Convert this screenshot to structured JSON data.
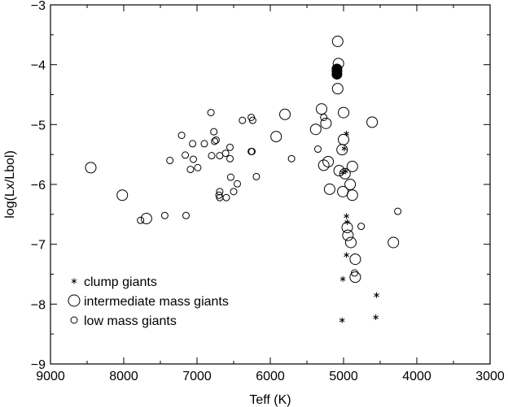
{
  "chart_data": {
    "type": "scatter",
    "xlabel": "Teff (K)",
    "ylabel": "log(Lx/Lbol)",
    "xlim": [
      9000,
      3000
    ],
    "ylim": [
      -9,
      -3
    ],
    "x_ticks": [
      9000,
      8000,
      7000,
      6000,
      5000,
      4000,
      3000
    ],
    "x_tick_labels": [
      "9000",
      "8000",
      "7000",
      "6000",
      "5000",
      "4000",
      "3000"
    ],
    "y_ticks": [
      -9,
      -8,
      -7,
      -6,
      -5,
      -4,
      -3
    ],
    "y_tick_labels": [
      "−9",
      "−8",
      "−7",
      "−6",
      "−5",
      "−4",
      "−3"
    ],
    "grid": false,
    "legend_position": "bottom-left",
    "series": [
      {
        "name": "clump giants",
        "marker": "asterisk",
        "points": [
          [
            4960,
            -5.15
          ],
          [
            4990,
            -5.4
          ],
          [
            5010,
            -5.8
          ],
          [
            4970,
            -5.78
          ],
          [
            4960,
            -6.53
          ],
          [
            4950,
            -6.63
          ],
          [
            4960,
            -7.18
          ],
          [
            5010,
            -7.58
          ],
          [
            4550,
            -7.85
          ],
          [
            5020,
            -8.27
          ],
          [
            4560,
            -8.22
          ]
        ]
      },
      {
        "name": "intermediate mass giants",
        "marker": "large-open-circle",
        "points": [
          [
            8450,
            -5.72
          ],
          [
            8020,
            -6.18
          ],
          [
            7690,
            -6.57
          ],
          [
            5920,
            -5.2
          ],
          [
            5800,
            -4.83
          ],
          [
            5380,
            -5.08
          ],
          [
            5300,
            -4.74
          ],
          [
            5240,
            -4.98
          ],
          [
            5270,
            -5.68
          ],
          [
            5210,
            -5.62
          ],
          [
            5190,
            -6.08
          ],
          [
            5080,
            -3.61
          ],
          [
            5070,
            -3.98
          ],
          [
            5080,
            -4.4
          ],
          [
            5000,
            -4.8
          ],
          [
            5000,
            -5.25
          ],
          [
            5020,
            -5.42
          ],
          [
            5060,
            -5.77
          ],
          [
            4980,
            -5.82
          ],
          [
            4880,
            -5.7
          ],
          [
            4910,
            -6.0
          ],
          [
            4880,
            -6.18
          ],
          [
            5010,
            -6.12
          ],
          [
            4950,
            -6.72
          ],
          [
            4940,
            -6.85
          ],
          [
            4900,
            -6.97
          ],
          [
            4840,
            -7.25
          ],
          [
            4840,
            -7.55
          ],
          [
            4610,
            -4.96
          ],
          [
            4320,
            -6.97
          ]
        ]
      },
      {
        "name": "low mass giants",
        "marker": "small-open-circle",
        "points": [
          [
            7770,
            -6.6
          ],
          [
            7440,
            -6.52
          ],
          [
            7150,
            -6.52
          ],
          [
            7370,
            -5.6
          ],
          [
            7210,
            -5.18
          ],
          [
            7160,
            -5.51
          ],
          [
            7090,
            -5.75
          ],
          [
            7060,
            -5.32
          ],
          [
            7050,
            -5.58
          ],
          [
            6990,
            -5.72
          ],
          [
            6900,
            -5.32
          ],
          [
            6810,
            -4.8
          ],
          [
            6800,
            -5.52
          ],
          [
            6770,
            -5.12
          ],
          [
            6760,
            -5.28
          ],
          [
            6740,
            -5.26
          ],
          [
            6690,
            -5.52
          ],
          [
            6690,
            -6.12
          ],
          [
            6700,
            -6.18
          ],
          [
            6690,
            -6.22
          ],
          [
            6610,
            -5.48
          ],
          [
            6600,
            -6.22
          ],
          [
            6550,
            -5.38
          ],
          [
            6550,
            -5.57
          ],
          [
            6540,
            -5.88
          ],
          [
            6500,
            -6.12
          ],
          [
            6450,
            -5.99
          ],
          [
            6380,
            -4.93
          ],
          [
            6260,
            -4.88
          ],
          [
            6240,
            -4.93
          ],
          [
            6260,
            -5.45
          ],
          [
            6250,
            -5.45
          ],
          [
            6190,
            -5.87
          ],
          [
            5710,
            -5.57
          ],
          [
            5350,
            -5.41
          ],
          [
            5270,
            -4.88
          ],
          [
            4760,
            -6.7
          ],
          [
            4850,
            -7.48
          ],
          [
            4260,
            -6.45
          ]
        ]
      },
      {
        "name": "",
        "marker": "filled-circle",
        "points": [
          [
            5090,
            -4.07
          ],
          [
            5090,
            -4.11
          ],
          [
            5090,
            -4.16
          ]
        ]
      }
    ]
  }
}
